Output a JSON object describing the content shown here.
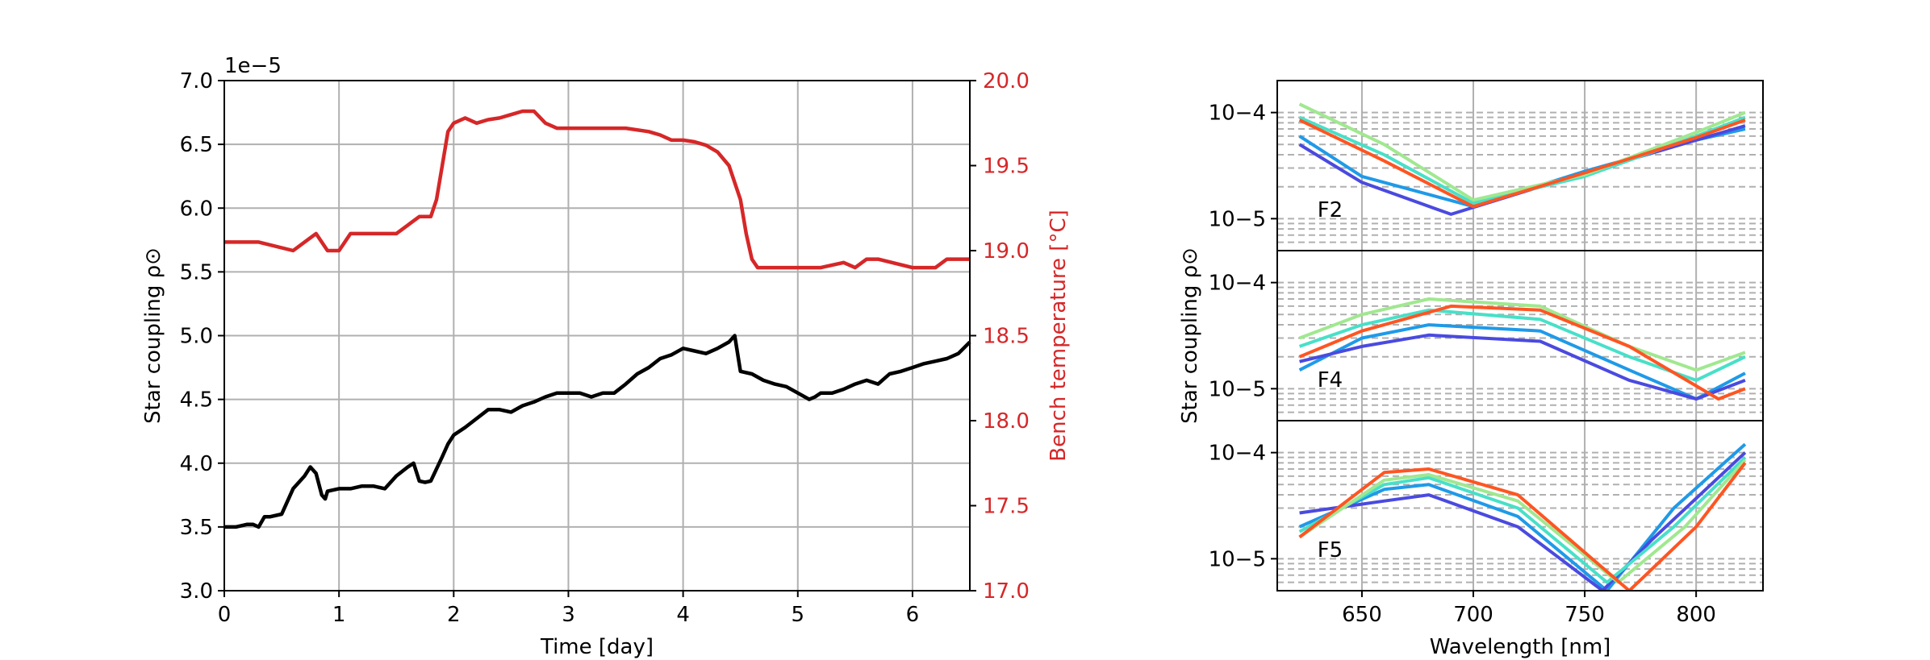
{
  "colors": {
    "coupling": "#000000",
    "temperature": "#d62728",
    "grid": "#b0b0b0",
    "refline": "#b0b0b0"
  },
  "chart_data": [
    {
      "type": "line",
      "title": "",
      "xlabel": "Time [day]",
      "ylabel": "Star coupling ρ⊙",
      "y2label": "Bench temperature [°C]",
      "offset_label": "1e−5",
      "xlim": [
        0,
        6.5
      ],
      "ylim": [
        3.0,
        7.0
      ],
      "y2lim": [
        17.0,
        20.0
      ],
      "xticks": [
        "0",
        "1",
        "2",
        "3",
        "4",
        "5",
        "6"
      ],
      "yticks": [
        "3.0",
        "3.5",
        "4.0",
        "4.5",
        "5.0",
        "5.5",
        "6.0",
        "6.5",
        "7.0"
      ],
      "y2ticks": [
        "17.0",
        "17.5",
        "18.0",
        "18.5",
        "19.0",
        "19.5",
        "20.0"
      ],
      "grid": true,
      "series": [
        {
          "axis": "left",
          "color": "#000000",
          "x": [
            0,
            0.1,
            0.2,
            0.25,
            0.3,
            0.35,
            0.4,
            0.5,
            0.55,
            0.6,
            0.65,
            0.7,
            0.75,
            0.8,
            0.85,
            0.88,
            0.9,
            1.0,
            1.1,
            1.2,
            1.3,
            1.4,
            1.5,
            1.6,
            1.65,
            1.7,
            1.75,
            1.8,
            1.9,
            1.95,
            2.0,
            2.1,
            2.2,
            2.3,
            2.4,
            2.5,
            2.6,
            2.7,
            2.8,
            2.9,
            3.0,
            3.1,
            3.2,
            3.3,
            3.4,
            3.5,
            3.6,
            3.7,
            3.8,
            3.9,
            4.0,
            4.1,
            4.2,
            4.3,
            4.4,
            4.45,
            4.5,
            4.6,
            4.7,
            4.8,
            4.9,
            5.0,
            5.1,
            5.15,
            5.2,
            5.3,
            5.4,
            5.5,
            5.6,
            5.7,
            5.8,
            5.9,
            6.0,
            6.1,
            6.2,
            6.3,
            6.4,
            6.5
          ],
          "values": [
            3.5,
            3.5,
            3.52,
            3.52,
            3.5,
            3.58,
            3.58,
            3.6,
            3.7,
            3.8,
            3.85,
            3.9,
            3.97,
            3.92,
            3.75,
            3.72,
            3.78,
            3.8,
            3.8,
            3.82,
            3.82,
            3.8,
            3.9,
            3.97,
            4.0,
            3.86,
            3.85,
            3.86,
            4.05,
            4.15,
            4.22,
            4.28,
            4.35,
            4.42,
            4.42,
            4.4,
            4.45,
            4.48,
            4.52,
            4.55,
            4.55,
            4.55,
            4.52,
            4.55,
            4.55,
            4.62,
            4.7,
            4.75,
            4.82,
            4.85,
            4.9,
            4.88,
            4.86,
            4.9,
            4.95,
            5.0,
            4.72,
            4.7,
            4.65,
            4.62,
            4.6,
            4.55,
            4.5,
            4.52,
            4.55,
            4.55,
            4.58,
            4.62,
            4.65,
            4.62,
            4.7,
            4.72,
            4.75,
            4.78,
            4.8,
            4.82,
            4.86,
            4.95
          ]
        },
        {
          "axis": "right",
          "color": "#d62728",
          "x": [
            0,
            0.3,
            0.6,
            0.8,
            0.9,
            1.0,
            1.1,
            1.5,
            1.6,
            1.7,
            1.8,
            1.85,
            1.9,
            1.95,
            2.0,
            2.1,
            2.2,
            2.3,
            2.4,
            2.5,
            2.6,
            2.7,
            2.8,
            2.9,
            3.0,
            3.5,
            3.7,
            3.8,
            3.9,
            4.0,
            4.1,
            4.2,
            4.3,
            4.4,
            4.5,
            4.55,
            4.6,
            4.65,
            4.7,
            5.0,
            5.2,
            5.4,
            5.5,
            5.6,
            5.7,
            6.0,
            6.2,
            6.3,
            6.5
          ],
          "values": [
            19.05,
            19.05,
            19.0,
            19.1,
            19.0,
            19.0,
            19.1,
            19.1,
            19.15,
            19.2,
            19.2,
            19.3,
            19.5,
            19.7,
            19.75,
            19.78,
            19.75,
            19.77,
            19.78,
            19.8,
            19.82,
            19.82,
            19.75,
            19.72,
            19.72,
            19.72,
            19.7,
            19.68,
            19.65,
            19.65,
            19.64,
            19.62,
            19.58,
            19.5,
            19.3,
            19.1,
            18.95,
            18.9,
            18.9,
            18.9,
            18.9,
            18.93,
            18.9,
            18.95,
            18.95,
            18.9,
            18.9,
            18.95,
            18.95
          ]
        }
      ]
    },
    {
      "type": "line",
      "title": "",
      "xlabel": "Wavelength [nm]",
      "ylabel": "Star coupling ρ⊙",
      "yscale": "log",
      "xlim": [
        612,
        830
      ],
      "xticks": [
        "650",
        "700",
        "750",
        "800"
      ],
      "grid": true,
      "panels": [
        {
          "label": "F2",
          "ylim": [
            5e-06,
            0.0002
          ],
          "yticks": [
            "10−4",
            "10−5"
          ],
          "series": [
            {
              "color": "#1f9ae8",
              "x": [
                622,
                650,
                700,
                750,
                800,
                822
              ],
              "values": [
                6e-05,
                2.5e-05,
                1.3e-05,
                2.8e-05,
                5.5e-05,
                7e-05
              ]
            },
            {
              "color": "#4a4ae0",
              "x": [
                622,
                650,
                690,
                750,
                800,
                822
              ],
              "values": [
                5e-05,
                2.2e-05,
                1.1e-05,
                2.7e-05,
                5.5e-05,
                7.5e-05
              ]
            },
            {
              "color": "#48e0c8",
              "x": [
                622,
                660,
                700,
                750,
                800,
                822
              ],
              "values": [
                9e-05,
                4e-05,
                1.4e-05,
                2.5e-05,
                6e-05,
                9e-05
              ]
            },
            {
              "color": "#a0e890",
              "x": [
                622,
                660,
                700,
                750,
                800,
                822
              ],
              "values": [
                0.00012,
                5e-05,
                1.5e-05,
                2.6e-05,
                6.5e-05,
                0.0001
              ]
            },
            {
              "color": "#ff5522",
              "x": [
                622,
                660,
                700,
                750,
                800,
                822
              ],
              "values": [
                8.5e-05,
                3.5e-05,
                1.3e-05,
                2.7e-05,
                5.8e-05,
                8.5e-05
              ]
            }
          ]
        },
        {
          "label": "F4",
          "ylim": [
            5e-06,
            0.0002
          ],
          "yticks": [
            "10−4",
            "10−5"
          ],
          "series": [
            {
              "color": "#1f9ae8",
              "x": [
                622,
                650,
                680,
                730,
                770,
                800,
                822
              ],
              "values": [
                1.5e-05,
                3e-05,
                4e-05,
                3.5e-05,
                1.5e-05,
                8e-06,
                1.4e-05
              ]
            },
            {
              "color": "#4a4ae0",
              "x": [
                622,
                650,
                680,
                730,
                770,
                800,
                822
              ],
              "values": [
                1.8e-05,
                2.5e-05,
                3.2e-05,
                2.8e-05,
                1.2e-05,
                8e-06,
                1.2e-05
              ]
            },
            {
              "color": "#48e0c8",
              "x": [
                622,
                650,
                680,
                730,
                770,
                800,
                822
              ],
              "values": [
                2.5e-05,
                4e-05,
                5.5e-05,
                4.5e-05,
                2e-05,
                1.2e-05,
                2e-05
              ]
            },
            {
              "color": "#a0e890",
              "x": [
                622,
                650,
                680,
                730,
                770,
                800,
                822
              ],
              "values": [
                3e-05,
                5e-05,
                7e-05,
                6e-05,
                2.5e-05,
                1.5e-05,
                2.2e-05
              ]
            },
            {
              "color": "#ff5522",
              "x": [
                622,
                650,
                690,
                730,
                770,
                810,
                822
              ],
              "values": [
                2e-05,
                3.5e-05,
                6e-05,
                5.5e-05,
                2.5e-05,
                8e-06,
                1e-05
              ]
            }
          ]
        },
        {
          "label": "F5",
          "ylim": [
            5e-06,
            0.0002
          ],
          "yticks": [
            "10−4",
            "10−5"
          ],
          "series": [
            {
              "color": "#1f9ae8",
              "x": [
                622,
                660,
                680,
                720,
                760,
                790,
                822
              ],
              "values": [
                2e-05,
                4.5e-05,
                5e-05,
                2.5e-05,
                5e-06,
                3e-05,
                0.00012
              ]
            },
            {
              "color": "#4a4ae0",
              "x": [
                622,
                660,
                680,
                720,
                758,
                780,
                822
              ],
              "values": [
                2.7e-05,
                3.5e-05,
                4e-05,
                2e-05,
                5e-06,
                1.5e-05,
                0.0001
              ]
            },
            {
              "color": "#48e0c8",
              "x": [
                622,
                660,
                680,
                720,
                760,
                790,
                822
              ],
              "values": [
                1.8e-05,
                5e-05,
                5.8e-05,
                3e-05,
                6e-06,
                2e-05,
                9e-05
              ]
            },
            {
              "color": "#a0e890",
              "x": [
                622,
                660,
                680,
                720,
                765,
                795,
                822
              ],
              "values": [
                1.6e-05,
                5.5e-05,
                6.2e-05,
                3.5e-05,
                6e-06,
                2e-05,
                8.5e-05
              ]
            },
            {
              "color": "#ff5522",
              "x": [
                622,
                660,
                680,
                720,
                770,
                800,
                822
              ],
              "values": [
                1.6e-05,
                6.5e-05,
                7e-05,
                4e-05,
                5e-06,
                2e-05,
                8e-05
              ]
            }
          ]
        }
      ],
      "reference_lines": [
        1e-05,
        2e-05,
        3e-05,
        4e-05,
        5e-05,
        6e-05,
        7e-05,
        8e-05,
        9e-05,
        0.0001,
        6e-06,
        7e-06,
        8e-06,
        9e-06
      ]
    }
  ]
}
